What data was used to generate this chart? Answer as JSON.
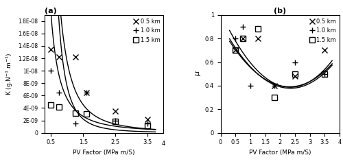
{
  "panel_a": {
    "title": "(a)",
    "xlabel": "PV Factor (MPa m/S)",
    "ylabel": "K (g.N⁻¹.m⁻¹)",
    "xlim": [
      0.3,
      4.0
    ],
    "ylim": [
      0,
      1.9e-08
    ],
    "yticks": [
      0,
      2e-09,
      4e-09,
      6e-09,
      8e-09,
      1e-08,
      1.2e-08,
      1.4e-08,
      1.6e-08,
      1.8e-08
    ],
    "ytick_labels": [
      "0",
      "2E-09",
      "4E-09",
      "6E-09",
      "8E-09",
      "1E-08",
      "1.2E-08",
      "1.4E-08",
      "1.6E-08",
      "1.8E-08"
    ],
    "xticks": [
      0.5,
      1.5,
      2.5,
      3.5
    ],
    "xtick_labels": [
      "0.5",
      "1.5",
      "2.5",
      "3.5"
    ],
    "series": {
      "x05": {
        "pv": [
          0.5,
          0.75,
          1.25,
          1.6,
          2.5,
          3.5
        ],
        "k": [
          1.35e-08,
          1.22e-08,
          1.22e-08,
          6.5e-09,
          3.5e-09,
          2.2e-09
        ],
        "marker": "x",
        "label": "0.5 km"
      },
      "x10": {
        "pv": [
          0.5,
          0.75,
          1.25,
          1.6,
          2.5,
          3.5
        ],
        "k": [
          1e-08,
          6.5e-09,
          1.5e-09,
          6.5e-09,
          2e-09,
          1.5e-09
        ],
        "marker": "+",
        "label": "1.0 km"
      },
      "x15": {
        "pv": [
          0.5,
          0.75,
          1.25,
          1.6,
          2.5,
          3.5
        ],
        "k": [
          4.5e-09,
          4.2e-09,
          3.2e-09,
          3e-09,
          1.8e-09,
          1.2e-09
        ],
        "marker": "s",
        "label": "1.5 km"
      }
    },
    "fit": {
      "x05": {
        "a": 1.15e-08,
        "b": 2.3
      },
      "x10": {
        "a": 7.5e-09,
        "b": 3.0
      },
      "x15": {
        "a": 5.5e-09,
        "b": 1.8
      }
    }
  },
  "panel_b": {
    "title": "(b)",
    "xlabel": "PV Factor (MPa m/S)",
    "ylabel": "μ",
    "xlim": [
      0,
      4.0
    ],
    "ylim": [
      0,
      1.0
    ],
    "yticks": [
      0,
      0.2,
      0.4,
      0.6,
      0.8,
      1.0
    ],
    "ytick_labels": [
      "0",
      "0.2",
      "0.4",
      "0.6",
      "0.8",
      "1"
    ],
    "xticks": [
      0,
      0.5,
      1.0,
      1.5,
      2.0,
      2.5,
      3.0,
      3.5,
      4.0
    ],
    "xtick_labels": [
      "0",
      "0.5",
      "1",
      "1.5",
      "2",
      "2.5",
      "3",
      "3.5",
      "4"
    ],
    "series": {
      "x05": {
        "pv": [
          0.5,
          0.75,
          1.25,
          1.8,
          2.5,
          3.5
        ],
        "mu": [
          0.7,
          0.8,
          0.8,
          0.4,
          0.48,
          0.7
        ],
        "marker": "x",
        "label": "0.5 km"
      },
      "x10": {
        "pv": [
          0.5,
          0.75,
          1.0,
          1.8,
          2.5,
          3.5
        ],
        "mu": [
          0.8,
          0.9,
          0.4,
          0.4,
          0.6,
          0.5
        ],
        "marker": "+",
        "label": "1.0 km"
      },
      "x15": {
        "pv": [
          0.5,
          0.75,
          1.25,
          1.8,
          2.5,
          3.5
        ],
        "mu": [
          0.7,
          0.8,
          0.88,
          0.3,
          0.5,
          0.5
        ],
        "marker": "s",
        "label": "1.5 km"
      }
    },
    "fit": {
      "x05": {
        "a": 0.115,
        "b": -0.54,
        "c": 1.02
      },
      "x10": {
        "a": 0.095,
        "b": -0.44,
        "c": 0.9
      },
      "x15": {
        "a": 0.1,
        "b": -0.47,
        "c": 0.93
      }
    }
  },
  "legend": {
    "markers": [
      "x",
      "+",
      "s"
    ],
    "labels": [
      "0.5 km",
      "1.0 km",
      "1.5 km"
    ]
  },
  "color": "black",
  "linewidth": 1.0,
  "markersize": 5.5
}
